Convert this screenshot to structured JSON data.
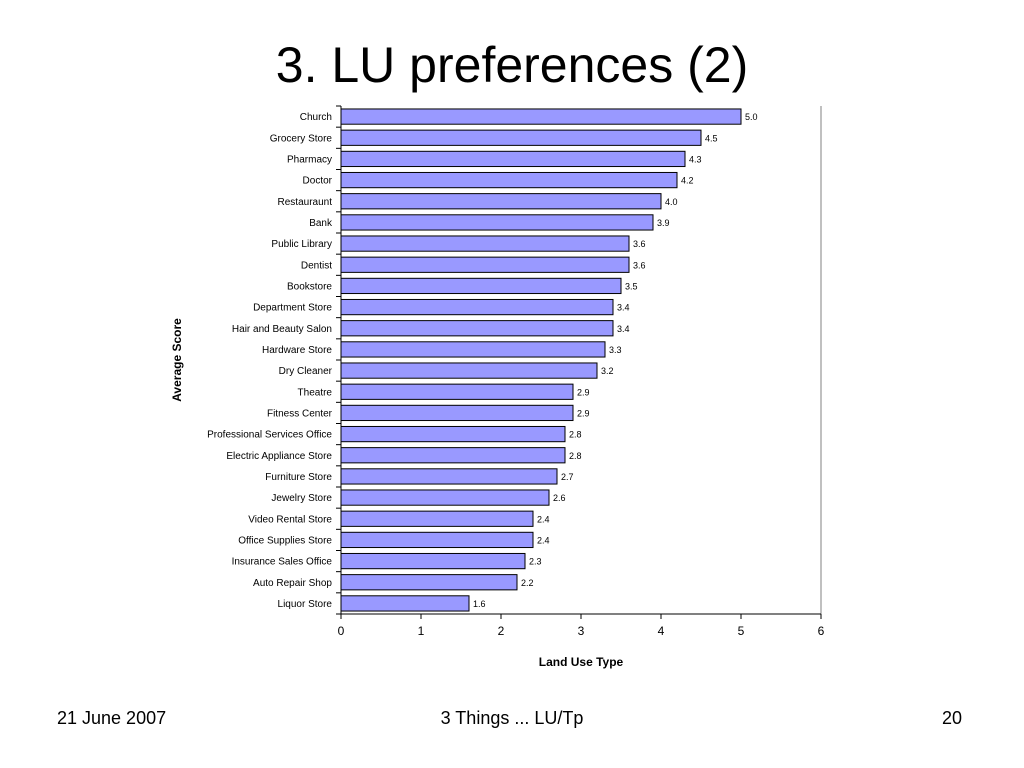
{
  "slide": {
    "title": "3. LU preferences (2)",
    "footer_date": "21 June 2007",
    "footer_center": "3 Things ... LU/Tp",
    "page_number": "20"
  },
  "chart_data": {
    "type": "bar",
    "orientation": "horizontal",
    "categories": [
      "Church",
      "Grocery Store",
      "Pharmacy",
      "Doctor",
      "Restauraunt",
      "Bank",
      "Public Library",
      "Dentist",
      "Bookstore",
      "Department Store",
      "Hair and Beauty Salon",
      "Hardware Store",
      "Dry Cleaner",
      "Theatre",
      "Fitness Center",
      "Professional Services Office",
      "Electric Appliance Store",
      "Furniture Store",
      "Jewelry Store",
      "Video Rental Store",
      "Office Supplies Store",
      "Insurance Sales Office",
      "Auto Repair Shop",
      "Liquor Store"
    ],
    "values": [
      5.0,
      4.5,
      4.3,
      4.2,
      4.0,
      3.9,
      3.6,
      3.6,
      3.5,
      3.4,
      3.4,
      3.3,
      3.2,
      2.9,
      2.9,
      2.8,
      2.8,
      2.7,
      2.6,
      2.4,
      2.4,
      2.3,
      2.2,
      1.6
    ],
    "data_labels": [
      "5.0",
      "4.5",
      "4.3",
      "4.2",
      "4.0",
      "3.9",
      "3.6",
      "3.6",
      "3.5",
      "3.4",
      "3.4",
      "3.3",
      "3.2",
      "2.9",
      "2.9",
      "2.8",
      "2.8",
      "2.7",
      "2.6",
      "2.4",
      "2.4",
      "2.3",
      "2.2",
      "1.6"
    ],
    "title": "",
    "xlabel": "Land Use Type",
    "ylabel": "Average Score",
    "xlim": [
      0,
      6
    ],
    "xticks": [
      0,
      1,
      2,
      3,
      4,
      5,
      6
    ],
    "grid": false,
    "legend": "none",
    "bar_color": "#9999ff",
    "bar_edge_color": "#000000"
  }
}
